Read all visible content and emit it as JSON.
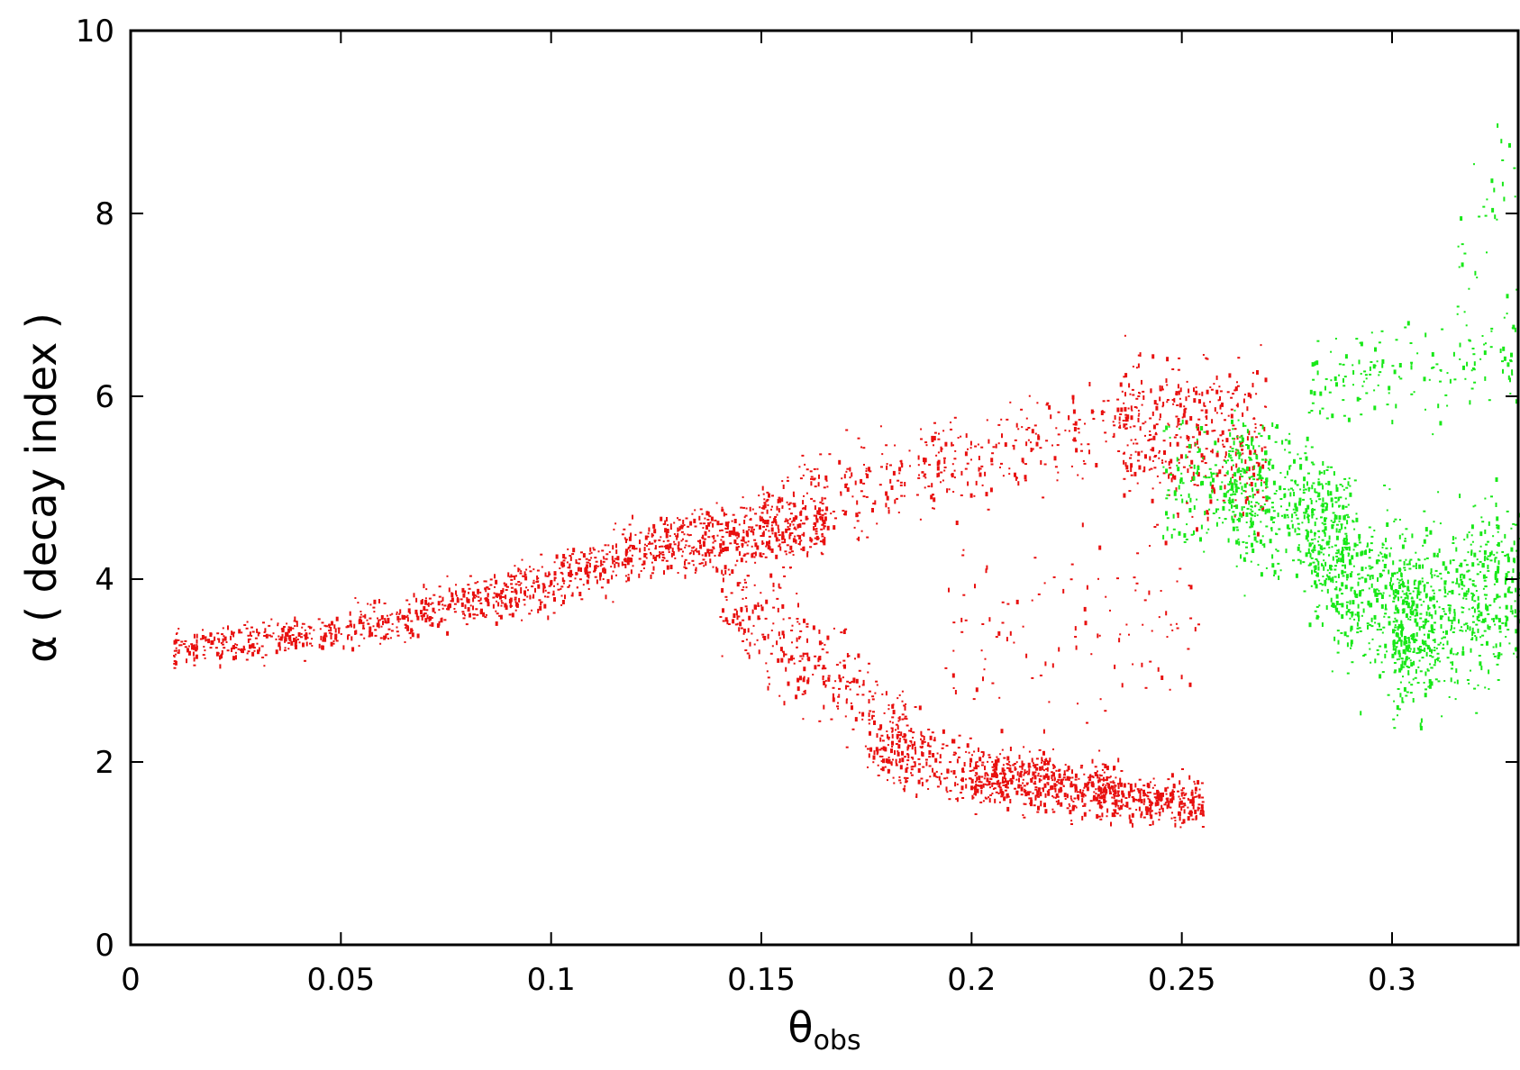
{
  "chart_data": {
    "type": "scatter",
    "title": "",
    "xlabel": "θ",
    "xlabel_subscript": "obs",
    "ylabel": "α ( decay index )",
    "xlim": [
      0,
      0.33
    ],
    "ylim": [
      0,
      10
    ],
    "x_ticks": [
      "0",
      "0.05",
      "0.1",
      "0.15",
      "0.2",
      "0.25",
      "0.3"
    ],
    "x_tick_values": [
      0,
      0.05,
      0.1,
      0.15,
      0.2,
      0.25,
      0.3
    ],
    "y_ticks": [
      "0",
      "2",
      "4",
      "6",
      "8",
      "10"
    ],
    "y_tick_values": [
      0,
      2,
      4,
      6,
      8,
      10
    ],
    "grid": false,
    "legend": "none",
    "series": [
      {
        "color": "#e8100f",
        "clusters": [
          {
            "x": [
              0.01,
              0.05
            ],
            "y_center": [
              3.25,
              3.45
            ],
            "y_spread": 0.2,
            "n": 260
          },
          {
            "x": [
              0.05,
              0.09
            ],
            "y_center": [
              3.45,
              3.85
            ],
            "y_spread": 0.25,
            "n": 300
          },
          {
            "x": [
              0.09,
              0.13
            ],
            "y_center": [
              3.85,
              4.45
            ],
            "y_spread": 0.3,
            "n": 380
          },
          {
            "x": [
              0.13,
              0.165
            ],
            "y_center": [
              4.4,
              4.6
            ],
            "y_spread": 0.35,
            "n": 380
          },
          {
            "x": [
              0.15,
              0.2
            ],
            "y_center": [
              4.7,
              5.4
            ],
            "y_spread": 0.5,
            "n": 260
          },
          {
            "x": [
              0.2,
              0.24
            ],
            "y_center": [
              5.3,
              5.8
            ],
            "y_spread": 0.5,
            "n": 160
          },
          {
            "x": [
              0.235,
              0.27
            ],
            "y_center": [
              5.8,
              5.4
            ],
            "y_spread": 0.8,
            "n": 380
          },
          {
            "x": [
              0.14,
              0.185
            ],
            "y_center": [
              3.9,
              2.3
            ],
            "y_spread": 0.6,
            "n": 320
          },
          {
            "x": [
              0.175,
              0.2
            ],
            "y_center": [
              2.2,
              1.9
            ],
            "y_spread": 0.4,
            "n": 220
          },
          {
            "x": [
              0.2,
              0.235
            ],
            "y_center": [
              1.85,
              1.7
            ],
            "y_spread": 0.3,
            "n": 520
          },
          {
            "x": [
              0.23,
              0.255
            ],
            "y_center": [
              1.65,
              1.55
            ],
            "y_spread": 0.25,
            "n": 280
          },
          {
            "x": [
              0.19,
              0.255
            ],
            "y_center": [
              3.2,
              3.8
            ],
            "y_spread": 1.0,
            "n": 120
          }
        ]
      },
      {
        "color": "#18e818",
        "clusters": [
          {
            "x": [
              0.245,
              0.27
            ],
            "y_center": [
              5.1,
              5.0
            ],
            "y_spread": 0.7,
            "n": 160
          },
          {
            "x": [
              0.26,
              0.29
            ],
            "y_center": [
              5.0,
              4.6
            ],
            "y_spread": 0.8,
            "n": 420
          },
          {
            "x": [
              0.28,
              0.31
            ],
            "y_center": [
              4.4,
              3.4
            ],
            "y_spread": 0.9,
            "n": 520
          },
          {
            "x": [
              0.3,
              0.33
            ],
            "y_center": [
              3.4,
              4.0
            ],
            "y_spread": 0.9,
            "n": 560
          },
          {
            "x": [
              0.28,
              0.33
            ],
            "y_center": [
              6.2,
              6.5
            ],
            "y_spread": 0.6,
            "n": 160
          },
          {
            "x": [
              0.315,
              0.33
            ],
            "y_center": [
              7.6,
              8.6
            ],
            "y_spread": 0.6,
            "n": 30
          }
        ]
      }
    ]
  }
}
